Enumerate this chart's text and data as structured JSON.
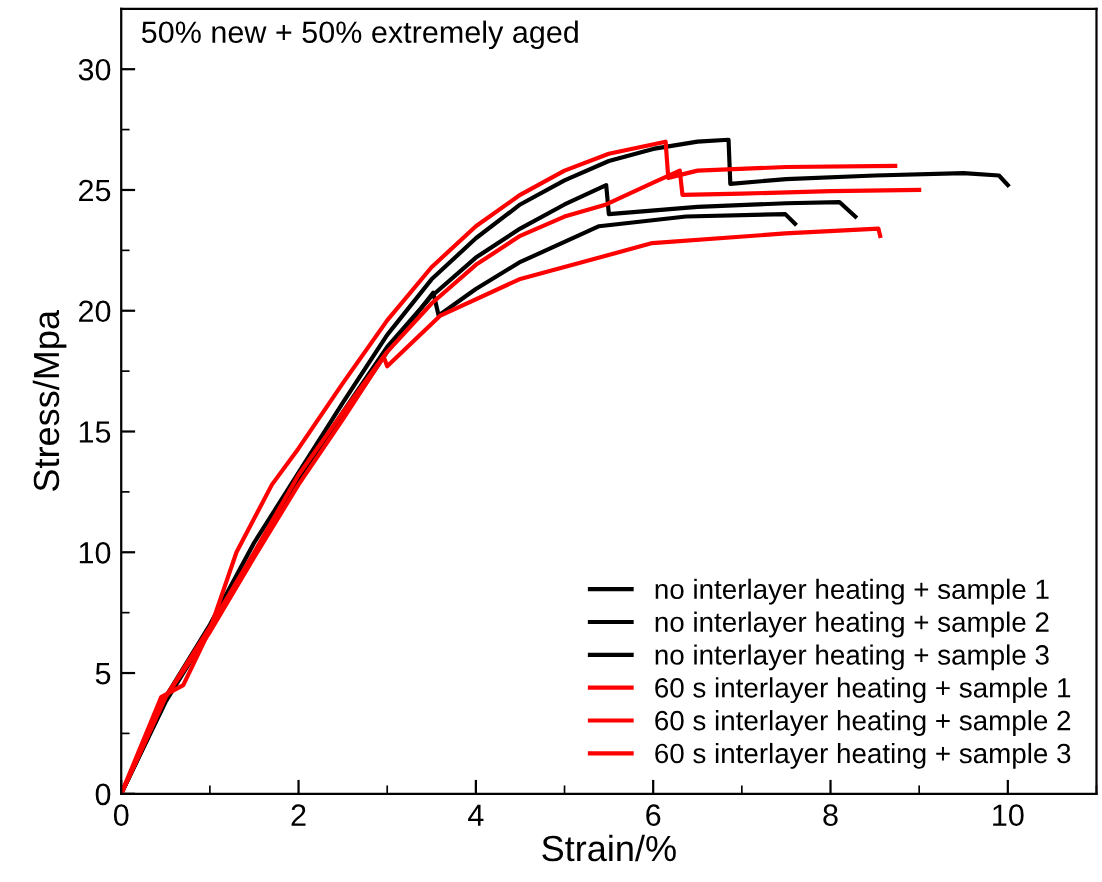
{
  "chart_data": {
    "type": "line",
    "xlabel": "Strain/%",
    "ylabel": "Stress/Mpa",
    "annotations": [
      "50% new + 50% extremely aged"
    ],
    "xlim": [
      0,
      11
    ],
    "xticks": [
      0,
      2,
      4,
      6,
      8,
      10
    ],
    "ylim": [
      0,
      32.5
    ],
    "yticks": [
      0,
      5,
      10,
      15,
      20,
      25,
      30
    ],
    "grid": false,
    "legend": "bottom right",
    "marker": "none",
    "line_style": "solid",
    "series": [
      {
        "name": "no interlayer heating + sample 1",
        "color": "#000000",
        "x": [
          0,
          0.5,
          1,
          1.5,
          2,
          2.5,
          3,
          3.5,
          4,
          4.5,
          5,
          5.5,
          6,
          6.5,
          6.85,
          6.87,
          7.5,
          8.5,
          9.5,
          9.9,
          10.0
        ],
        "values": [
          0,
          4,
          7,
          10.4,
          13.3,
          16.2,
          19,
          21.3,
          23,
          24.4,
          25.4,
          26.2,
          26.7,
          27,
          27.08,
          25.25,
          25.45,
          25.6,
          25.7,
          25.6,
          25.2
        ]
      },
      {
        "name": "no interlayer heating + sample 2",
        "color": "#000000",
        "x": [
          0,
          0.5,
          1,
          1.5,
          2,
          2.5,
          3,
          3.5,
          4,
          4.5,
          5,
          5.47,
          5.5,
          6.5,
          7.5,
          8.1,
          8.28
        ],
        "values": [
          0,
          3.8,
          6.8,
          9.9,
          13,
          15.8,
          18.5,
          20.6,
          22.2,
          23.4,
          24.4,
          25.2,
          24.0,
          24.3,
          24.45,
          24.5,
          23.9
        ]
      },
      {
        "name": "no interlayer heating + sample 3",
        "color": "#000000",
        "x": [
          0,
          0.5,
          1,
          1.5,
          2,
          2.5,
          3,
          3.52,
          3.58,
          4,
          4.49,
          5.39,
          6.37,
          7.49,
          7.6
        ],
        "values": [
          0,
          3.9,
          6.8,
          9.9,
          12.9,
          15.6,
          18.3,
          20.75,
          19.8,
          20.9,
          22.0,
          23.5,
          23.9,
          24.0,
          23.6
        ]
      },
      {
        "name": "60 s interlayer heating + sample 1",
        "color": "#ff0000",
        "x": [
          0,
          0.45,
          0.7,
          1,
          1.3,
          1.7,
          2,
          2.5,
          3,
          3.5,
          4,
          4.5,
          5,
          5.5,
          6.14,
          6.17,
          6.5,
          7.5,
          8.73
        ],
        "values": [
          0,
          4,
          4.5,
          6.8,
          10,
          12.8,
          14.3,
          17,
          19.6,
          21.8,
          23.5,
          24.8,
          25.8,
          26.5,
          27.0,
          25.5,
          25.8,
          25.95,
          26.0
        ]
      },
      {
        "name": "60 s interlayer heating + sample 2",
        "color": "#ff0000",
        "x": [
          0,
          0.5,
          1,
          1.5,
          2,
          2.5,
          3,
          3.5,
          4,
          4.5,
          5,
          5.47,
          6,
          6.3,
          6.33,
          7,
          8,
          9
        ],
        "values": [
          0,
          4,
          6.9,
          10,
          13.2,
          15.8,
          18.3,
          20.3,
          21.9,
          23.1,
          23.9,
          24.4,
          25.3,
          25.8,
          24.8,
          24.85,
          24.95,
          25.0
        ]
      },
      {
        "name": "60 s interlayer heating + sample 3",
        "color": "#ff0000",
        "x": [
          0,
          0.5,
          1,
          1.5,
          2,
          2.5,
          2.96,
          3.0,
          3.6,
          4.49,
          5.99,
          7.49,
          8.54,
          8.56
        ],
        "values": [
          0,
          4,
          6.7,
          9.8,
          12.8,
          15.5,
          18.1,
          17.7,
          19.8,
          21.3,
          22.8,
          23.2,
          23.4,
          23.1
        ]
      }
    ]
  }
}
